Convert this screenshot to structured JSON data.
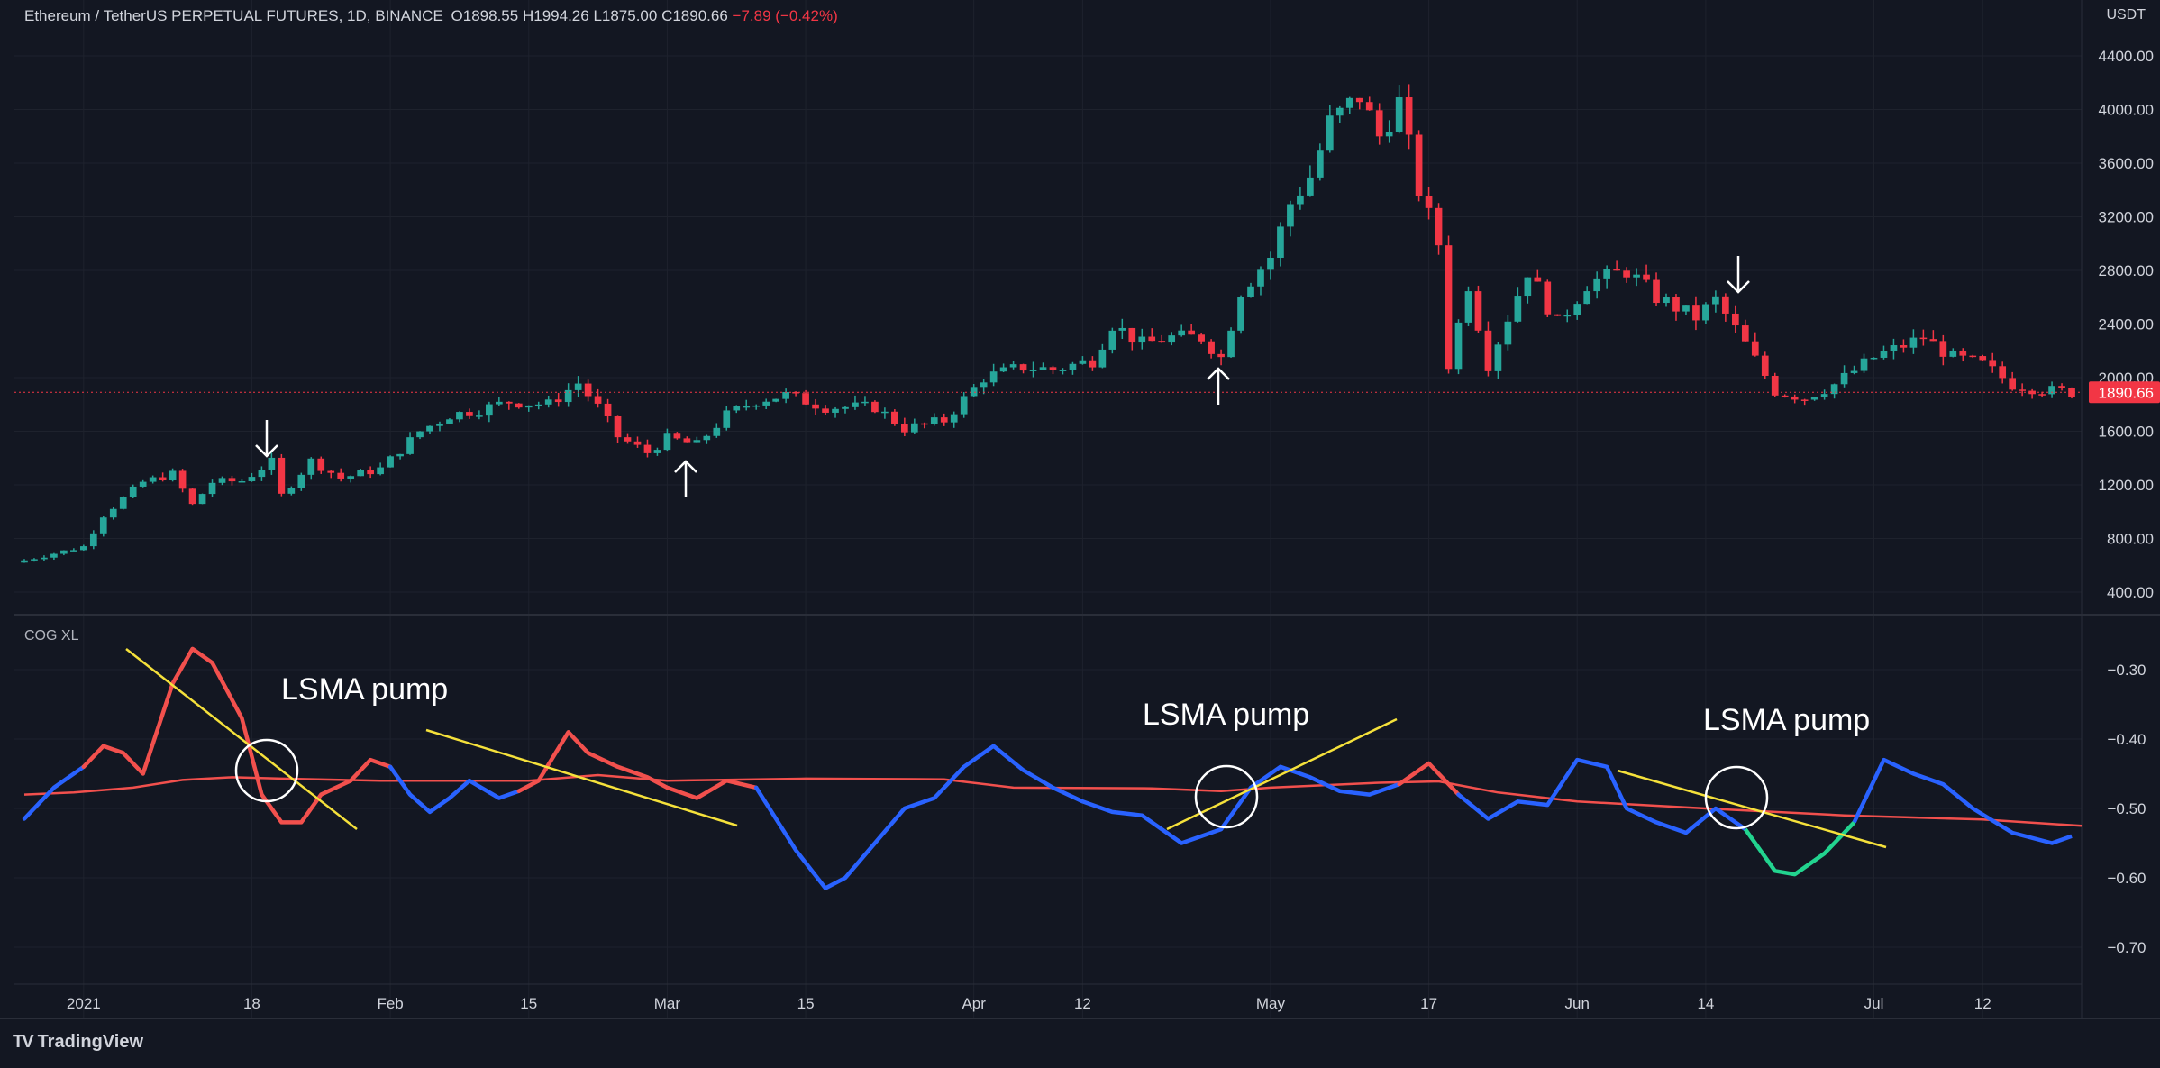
{
  "header": {
    "symbol": "Ethereum / TetherUS PERPETUAL FUTURES, 1D, BINANCE",
    "o": "O1898.55",
    "h": "H1994.26",
    "l": "L1875.00",
    "c": "C1890.66",
    "change": "−7.89 (−0.42%)"
  },
  "price_axis": {
    "unit": "USDT",
    "last_price": "1890.66"
  },
  "indicator": {
    "name": "COG XL"
  },
  "annotations": {
    "pump1": "LSMA pump",
    "pump2": "LSMA pump",
    "pump3": "LSMA pump"
  },
  "footer": {
    "brand": "TradingView"
  },
  "colors": {
    "background": "#131722",
    "up": "#26a69a",
    "down": "#f23645",
    "cog_red": "#f2504d",
    "cog_blue": "#2962ff",
    "cog_green": "#22d48f",
    "trendline": "#f5e13b",
    "signal": "#f05a4f"
  },
  "chart_data": [
    {
      "type": "candlestick",
      "title": "Ethereum / TetherUS PERPETUAL FUTURES, 1D, BINANCE",
      "ylim": [
        300,
        4500
      ],
      "yticks": [
        400,
        800,
        1200,
        1600,
        2000,
        2400,
        2800,
        3200,
        3600,
        4000,
        4400
      ],
      "ytick_labels": [
        "400.00",
        "800.00",
        "1200.00",
        "1600.00",
        "2000.00",
        "2400.00",
        "2800.00",
        "3200.00",
        "3600.00",
        "4000.00",
        "4400.00"
      ],
      "x_start": "2021-01-01",
      "x_end": "2021-07-22",
      "xtick_labels": [
        {
          "date": "2021-01-01",
          "label": "2021"
        },
        {
          "date": "2021-01-18",
          "label": "18"
        },
        {
          "date": "2021-02-01",
          "label": "Feb"
        },
        {
          "date": "2021-02-15",
          "label": "15"
        },
        {
          "date": "2021-03-01",
          "label": "Mar"
        },
        {
          "date": "2021-03-15",
          "label": "15"
        },
        {
          "date": "2021-04-01",
          "label": "Apr"
        },
        {
          "date": "2021-04-12",
          "label": "12"
        },
        {
          "date": "2021-05-01",
          "label": "May"
        },
        {
          "date": "2021-05-17",
          "label": "17"
        },
        {
          "date": "2021-06-01",
          "label": "Jun"
        },
        {
          "date": "2021-06-14",
          "label": "14"
        },
        {
          "date": "2021-07-01",
          "label": "Jul"
        },
        {
          "date": "2021-07-12",
          "label": "12"
        }
      ],
      "grid": true,
      "last_price": 1890.66,
      "close_path": [
        [
          "2020-12-25",
          620
        ],
        [
          "2021-01-01",
          740
        ],
        [
          "2021-01-03",
          975
        ],
        [
          "2021-01-07",
          1220
        ],
        [
          "2021-01-10",
          1280
        ],
        [
          "2021-01-12",
          1050
        ],
        [
          "2021-01-14",
          1220
        ],
        [
          "2021-01-17",
          1230
        ],
        [
          "2021-01-20",
          1370
        ],
        [
          "2021-01-21",
          1120
        ],
        [
          "2021-01-24",
          1380
        ],
        [
          "2021-01-27",
          1250
        ],
        [
          "2021-01-31",
          1320
        ],
        [
          "2021-02-04",
          1600
        ],
        [
          "2021-02-07",
          1720
        ],
        [
          "2021-02-10",
          1760
        ],
        [
          "2021-02-13",
          1820
        ],
        [
          "2021-02-17",
          1800
        ],
        [
          "2021-02-20",
          1960
        ],
        [
          "2021-02-22",
          1780
        ],
        [
          "2021-02-24",
          1560
        ],
        [
          "2021-02-27",
          1440
        ],
        [
          "2021-03-01",
          1550
        ],
        [
          "2021-03-04",
          1500
        ],
        [
          "2021-03-07",
          1720
        ],
        [
          "2021-03-10",
          1830
        ],
        [
          "2021-03-13",
          1870
        ],
        [
          "2021-03-17",
          1780
        ],
        [
          "2021-03-22",
          1780
        ],
        [
          "2021-03-25",
          1620
        ],
        [
          "2021-03-29",
          1680
        ],
        [
          "2021-04-02",
          2000
        ],
        [
          "2021-04-06",
          2080
        ],
        [
          "2021-04-09",
          2060
        ],
        [
          "2021-04-13",
          2130
        ],
        [
          "2021-04-15",
          2400
        ],
        [
          "2021-04-18",
          2250
        ],
        [
          "2021-04-21",
          2300
        ],
        [
          "2021-04-24",
          2300
        ],
        [
          "2021-04-26",
          2150
        ],
        [
          "2021-04-28",
          2650
        ],
        [
          "2021-05-01",
          2900
        ],
        [
          "2021-05-03",
          3300
        ],
        [
          "2021-05-05",
          3500
        ],
        [
          "2021-05-07",
          3900
        ],
        [
          "2021-05-10",
          4100
        ],
        [
          "2021-05-12",
          3800
        ],
        [
          "2021-05-14",
          4050
        ],
        [
          "2021-05-16",
          3400
        ],
        [
          "2021-05-18",
          3000
        ],
        [
          "2021-05-19",
          2100
        ],
        [
          "2021-05-21",
          2700
        ],
        [
          "2021-05-23",
          2100
        ],
        [
          "2021-05-27",
          2800
        ],
        [
          "2021-05-30",
          2400
        ],
        [
          "2021-06-02",
          2700
        ],
        [
          "2021-06-06",
          2800
        ],
        [
          "2021-06-09",
          2600
        ],
        [
          "2021-06-13",
          2450
        ],
        [
          "2021-06-15",
          2580
        ],
        [
          "2021-06-18",
          2250
        ],
        [
          "2021-06-21",
          1900
        ],
        [
          "2021-06-24",
          1850
        ],
        [
          "2021-06-27",
          1950
        ],
        [
          "2021-07-01",
          2150
        ],
        [
          "2021-07-06",
          2300
        ],
        [
          "2021-07-09",
          2150
        ],
        [
          "2021-07-12",
          2100
        ],
        [
          "2021-07-15",
          1950
        ],
        [
          "2021-07-19",
          1900
        ],
        [
          "2021-07-21",
          1890.66
        ]
      ]
    },
    {
      "type": "line",
      "title": "COG XL",
      "ylim": [
        -0.74,
        -0.24
      ],
      "yticks": [
        -0.3,
        -0.4,
        -0.5,
        -0.6,
        -0.7
      ],
      "ytick_labels": [
        "−0.30",
        "−0.40",
        "−0.50",
        "−0.60",
        "−0.70"
      ],
      "series": [
        {
          "color": "#f2504d",
          "points": [
            [
              "2020-12-26",
              -0.48
            ],
            [
              "2020-12-31",
              -0.477
            ],
            [
              "2021-01-06",
              -0.47
            ],
            [
              "2021-01-11",
              -0.459
            ],
            [
              "2021-01-16",
              -0.455
            ],
            [
              "2021-01-21",
              -0.457
            ],
            [
              "2021-01-31",
              -0.46
            ],
            [
              "2021-02-15",
              -0.46
            ],
            [
              "2021-02-22",
              -0.452
            ],
            [
              "2021-03-01",
              -0.46
            ],
            [
              "2021-03-15",
              -0.457
            ],
            [
              "2021-03-29",
              -0.458
            ],
            [
              "2021-04-05",
              -0.47
            ],
            [
              "2021-04-19",
              -0.471
            ],
            [
              "2021-04-26",
              -0.475
            ],
            [
              "2021-05-01",
              -0.47
            ],
            [
              "2021-05-12",
              -0.463
            ],
            [
              "2021-05-18",
              -0.461
            ],
            [
              "2021-05-24",
              -0.477
            ],
            [
              "2021-06-01",
              -0.49
            ],
            [
              "2021-06-14",
              -0.5
            ],
            [
              "2021-06-28",
              -0.51
            ],
            [
              "2021-07-12",
              -0.516
            ],
            [
              "2021-07-22",
              -0.525
            ]
          ]
        },
        {
          "color": "#2962ff",
          "segments": [
            {
              "color": "#2962ff",
              "points": [
                [
                  "2020-12-26",
                  -0.515
                ],
                [
                  "2020-12-29",
                  -0.47
                ],
                [
                  "2021-01-01",
                  -0.44
                ]
              ]
            },
            {
              "color": "#f2504d",
              "points": [
                [
                  "2021-01-01",
                  -0.44
                ],
                [
                  "2021-01-03",
                  -0.41
                ],
                [
                  "2021-01-05",
                  -0.42
                ],
                [
                  "2021-01-07",
                  -0.45
                ],
                [
                  "2021-01-10",
                  -0.32
                ],
                [
                  "2021-01-12",
                  -0.27
                ],
                [
                  "2021-01-14",
                  -0.29
                ],
                [
                  "2021-01-17",
                  -0.37
                ],
                [
                  "2021-01-19",
                  -0.48
                ],
                [
                  "2021-01-21",
                  -0.52
                ],
                [
                  "2021-01-23",
                  -0.52
                ],
                [
                  "2021-01-25",
                  -0.48
                ],
                [
                  "2021-01-28",
                  -0.46
                ],
                [
                  "2021-01-30",
                  -0.43
                ],
                [
                  "2021-02-01",
                  -0.44
                ]
              ]
            },
            {
              "color": "#2962ff",
              "points": [
                [
                  "2021-02-01",
                  -0.44
                ],
                [
                  "2021-02-03",
                  -0.48
                ],
                [
                  "2021-02-05",
                  -0.505
                ],
                [
                  "2021-02-07",
                  -0.485
                ],
                [
                  "2021-02-09",
                  -0.46
                ],
                [
                  "2021-02-12",
                  -0.485
                ],
                [
                  "2021-02-14",
                  -0.475
                ]
              ]
            },
            {
              "color": "#f2504d",
              "points": [
                [
                  "2021-02-14",
                  -0.475
                ],
                [
                  "2021-02-16",
                  -0.46
                ],
                [
                  "2021-02-19",
                  -0.39
                ],
                [
                  "2021-02-21",
                  -0.42
                ],
                [
                  "2021-02-24",
                  -0.44
                ],
                [
                  "2021-02-27",
                  -0.455
                ],
                [
                  "2021-03-01",
                  -0.47
                ],
                [
                  "2021-03-04",
                  -0.485
                ],
                [
                  "2021-03-07",
                  -0.46
                ],
                [
                  "2021-03-10",
                  -0.47
                ]
              ]
            },
            {
              "color": "#2962ff",
              "points": [
                [
                  "2021-03-10",
                  -0.47
                ],
                [
                  "2021-03-14",
                  -0.56
                ],
                [
                  "2021-03-17",
                  -0.615
                ],
                [
                  "2021-03-19",
                  -0.6
                ],
                [
                  "2021-03-22",
                  -0.55
                ],
                [
                  "2021-03-25",
                  -0.5
                ],
                [
                  "2021-03-28",
                  -0.485
                ],
                [
                  "2021-03-31",
                  -0.44
                ],
                [
                  "2021-04-03",
                  -0.41
                ],
                [
                  "2021-04-06",
                  -0.445
                ],
                [
                  "2021-04-09",
                  -0.47
                ],
                [
                  "2021-04-12",
                  -0.49
                ],
                [
                  "2021-04-15",
                  -0.505
                ],
                [
                  "2021-04-18",
                  -0.51
                ],
                [
                  "2021-04-22",
                  -0.55
                ],
                [
                  "2021-04-26",
                  -0.53
                ],
                [
                  "2021-04-29",
                  -0.47
                ],
                [
                  "2021-05-02",
                  -0.44
                ],
                [
                  "2021-05-05",
                  -0.455
                ],
                [
                  "2021-05-08",
                  -0.475
                ],
                [
                  "2021-05-11",
                  -0.48
                ],
                [
                  "2021-05-14",
                  -0.465
                ]
              ]
            },
            {
              "color": "#f2504d",
              "points": [
                [
                  "2021-05-14",
                  -0.465
                ],
                [
                  "2021-05-17",
                  -0.435
                ],
                [
                  "2021-05-20",
                  -0.48
                ]
              ]
            },
            {
              "color": "#2962ff",
              "points": [
                [
                  "2021-05-20",
                  -0.48
                ],
                [
                  "2021-05-23",
                  -0.515
                ],
                [
                  "2021-05-26",
                  -0.49
                ],
                [
                  "2021-05-29",
                  -0.495
                ],
                [
                  "2021-06-01",
                  -0.43
                ],
                [
                  "2021-06-04",
                  -0.44
                ],
                [
                  "2021-06-06",
                  -0.5
                ]
              ]
            }
          ]
        }
      ]
    }
  ]
}
